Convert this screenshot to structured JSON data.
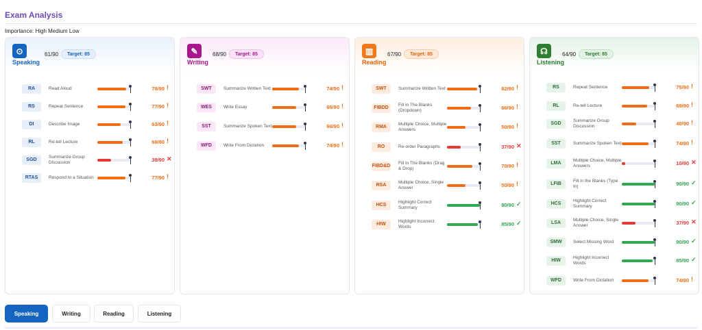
{
  "title": "Exam Analysis",
  "importance": "Importance: High Medium Low",
  "colors": {
    "high": "#f36c14",
    "medium": "#f36c14",
    "low": "#e53935",
    "good": "#2fa84f"
  },
  "sections": [
    {
      "name": "Speaking",
      "icon": "microphone-icon",
      "icon_glyph": "⊙",
      "score": "61/90",
      "target": "Target: 85",
      "accent": "#1565c0",
      "icon_bg": "#1565c0",
      "head_bg": "linear-gradient(180deg,#eaf2fd 0%,#ffffff 100%)",
      "target_bg": "#e6f0fc",
      "target_border": "#c9dcf7",
      "code_bg": "#e7eef9",
      "code_color": "#1d4f91",
      "items": [
        {
          "code": "RA",
          "label": "Read Aloud",
          "value": "78/90",
          "pct": 0.87,
          "status": "medium"
        },
        {
          "code": "RS",
          "label": "Repeat Sentence",
          "value": "77/90",
          "pct": 0.86,
          "status": "medium"
        },
        {
          "code": "DI",
          "label": "Describe Image",
          "value": "63/90",
          "pct": 0.7,
          "status": "medium"
        },
        {
          "code": "RL",
          "label": "Re-tell Lecture",
          "value": "69/90",
          "pct": 0.77,
          "status": "medium"
        },
        {
          "code": "SGD",
          "label": "Summarize Group Discussion",
          "value": "38/90",
          "pct": 0.42,
          "status": "low"
        },
        {
          "code": "RTAS",
          "label": "Respond to a Situation",
          "value": "77/90",
          "pct": 0.86,
          "status": "medium"
        }
      ]
    },
    {
      "name": "Writing",
      "icon": "edit-icon",
      "icon_glyph": "✎",
      "score": "68/90",
      "target": "Target: 85",
      "accent": "#a8168f",
      "icon_bg": "#a8168f",
      "head_bg": "linear-gradient(180deg,#fbe9f8 0%,#ffffff 100%)",
      "target_bg": "#fae3f6",
      "target_border": "#efc3e7",
      "code_bg": "#fbe7f7",
      "code_color": "#8c1676",
      "items": [
        {
          "code": "SWT",
          "label": "Summarize Written Text",
          "value": "74/90",
          "pct": 0.82,
          "status": "medium"
        },
        {
          "code": "WES",
          "label": "Write Essay",
          "value": "66/90",
          "pct": 0.73,
          "status": "medium"
        },
        {
          "code": "SST",
          "label": "Summarize Spoken Text",
          "value": "66/90",
          "pct": 0.73,
          "status": "medium"
        },
        {
          "code": "WFD",
          "label": "Write From Dictation",
          "value": "74/90",
          "pct": 0.82,
          "status": "medium"
        }
      ]
    },
    {
      "name": "Reading",
      "icon": "book-icon",
      "icon_glyph": "▥",
      "score": "67/90",
      "target": "Target: 85",
      "accent": "#e8630a",
      "icon_bg": "#f07a1a",
      "head_bg": "linear-gradient(180deg,#fdeedf 0%,#ffffff 100%)",
      "target_bg": "#fde9da",
      "target_border": "#f6cda9",
      "code_bg": "#fdebdf",
      "code_color": "#c0520c",
      "items": [
        {
          "code": "SWT",
          "label": "Summarize Written Text",
          "value": "82/90",
          "pct": 0.91,
          "status": "medium"
        },
        {
          "code": "FIBDD",
          "label": "Fill in The Blanks (Dropdown)",
          "value": "66/90",
          "pct": 0.73,
          "status": "medium"
        },
        {
          "code": "RMA",
          "label": "Multiple Choice, Multiple Answers",
          "value": "50/90",
          "pct": 0.56,
          "status": "medium"
        },
        {
          "code": "RO",
          "label": "Re-order Paragraphs",
          "value": "37/90",
          "pct": 0.41,
          "status": "low"
        },
        {
          "code": "FIBD&D",
          "label": "Fill in The Blanks (Drag & Drop)",
          "value": "70/90",
          "pct": 0.78,
          "status": "medium"
        },
        {
          "code": "RSA",
          "label": "Multiple Choice, Single Answer",
          "value": "50/90",
          "pct": 0.56,
          "status": "medium"
        },
        {
          "code": "HCS",
          "label": "Highlight Correct Summary",
          "value": "90/90",
          "pct": 1.0,
          "status": "good"
        },
        {
          "code": "HIW",
          "label": "Highlight Incorrect Words",
          "value": "85/90",
          "pct": 0.94,
          "status": "good"
        }
      ]
    },
    {
      "name": "Listening",
      "icon": "headphones-icon",
      "icon_glyph": "☊",
      "score": "64/90",
      "target": "Target: 85",
      "accent": "#2e7d32",
      "icon_bg": "#2e7d32",
      "head_bg": "linear-gradient(180deg,#e5f4e7 0%,#ffffff 100%)",
      "target_bg": "#e3f2e5",
      "target_border": "#bfdfc3",
      "code_bg": "#e6f3e8",
      "code_color": "#2e6b32",
      "items": [
        {
          "code": "RS",
          "label": "Repeat Sentence",
          "value": "75/90",
          "pct": 0.83,
          "status": "medium"
        },
        {
          "code": "RL",
          "label": "Re-tell Lecture",
          "value": "69/90",
          "pct": 0.77,
          "status": "medium"
        },
        {
          "code": "SGD",
          "label": "Summarize Group Discussion",
          "value": "40/90",
          "pct": 0.44,
          "status": "medium"
        },
        {
          "code": "SST",
          "label": "Summarize Spoken Text",
          "value": "74/90",
          "pct": 0.82,
          "status": "medium"
        },
        {
          "code": "LMA",
          "label": "Multiple Choice, Multiple Answers",
          "value": "10/90",
          "pct": 0.11,
          "status": "low"
        },
        {
          "code": "LFIB",
          "label": "Fill in the Blanks (Type In)",
          "value": "90/90",
          "pct": 1.0,
          "status": "good"
        },
        {
          "code": "HCS",
          "label": "Highlight Correct Summary",
          "value": "90/90",
          "pct": 1.0,
          "status": "good"
        },
        {
          "code": "LSA",
          "label": "Multiple Choice, Single Answer",
          "value": "37/90",
          "pct": 0.41,
          "status": "low"
        },
        {
          "code": "SMW",
          "label": "Select Missing Word",
          "value": "90/90",
          "pct": 1.0,
          "status": "good"
        },
        {
          "code": "HIW",
          "label": "Highlight Incorrect Words",
          "value": "85/90",
          "pct": 0.94,
          "status": "good"
        },
        {
          "code": "WFD",
          "label": "Write From Dictation",
          "value": "74/90",
          "pct": 0.82,
          "status": "medium"
        }
      ]
    }
  ],
  "status_marks": {
    "medium": "!",
    "low": "✕",
    "good": "✓"
  },
  "tabs": [
    {
      "label": "Speaking",
      "active": true
    },
    {
      "label": "Writing",
      "active": false
    },
    {
      "label": "Reading",
      "active": false
    },
    {
      "label": "Listening",
      "active": false
    }
  ]
}
